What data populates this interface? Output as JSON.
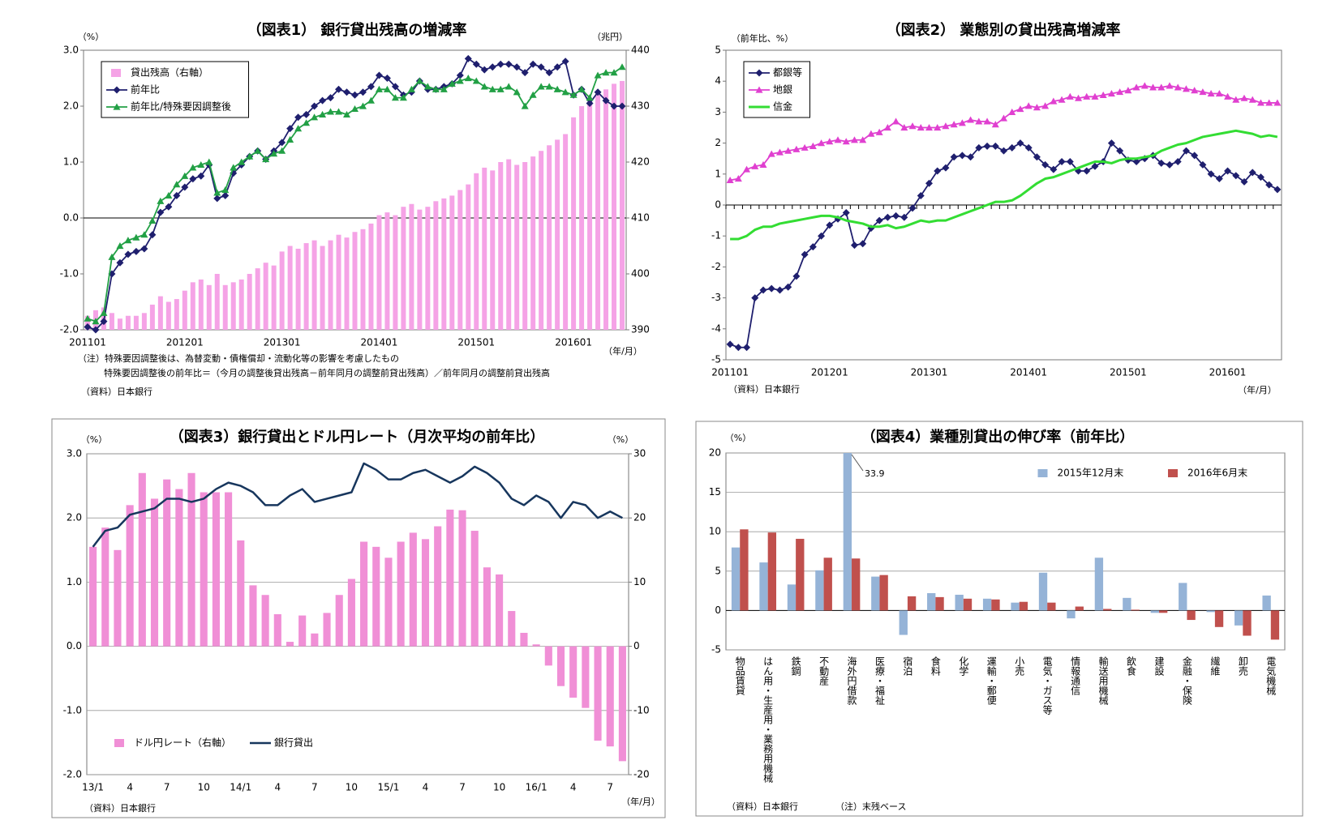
{
  "chart_data": [
    {
      "type": "combo",
      "title": "（図表1） 銀行貸出残高の増減率",
      "y_label": "（%）",
      "y2_label": "（兆円）",
      "x_unit": "（年/月）",
      "notes": [
        "（注）特殊要因調整後は、為替変動・債権償却・流動化等の影響を考慮したもの",
        "特殊要因調整後の前年比＝（今月の調整後貸出残高－前年同月の調整前貸出残高）／前年同月の調整前貸出残高"
      ],
      "source": "（資料）日本銀行",
      "categories": [
        "201101",
        null,
        null,
        null,
        null,
        null,
        null,
        null,
        null,
        null,
        null,
        null,
        "201201",
        null,
        null,
        null,
        null,
        null,
        null,
        null,
        null,
        null,
        null,
        null,
        "201301",
        null,
        null,
        null,
        null,
        null,
        null,
        null,
        null,
        null,
        null,
        null,
        "201401",
        null,
        null,
        null,
        null,
        null,
        null,
        null,
        null,
        null,
        null,
        null,
        "201501",
        null,
        null,
        null,
        null,
        null,
        null,
        null,
        null,
        null,
        null,
        null,
        "201601",
        null,
        null,
        null,
        null,
        null,
        null
      ],
      "series": [
        {
          "name": "貸出残高（右軸）",
          "type": "bar",
          "axis": "y2",
          "color": "#f5a3e6",
          "values": [
            392.5,
            393.5,
            394,
            393,
            392,
            392.5,
            392.5,
            393,
            394.5,
            396,
            395,
            395.5,
            397,
            398.5,
            399,
            398,
            400,
            398,
            398.5,
            399,
            400,
            401,
            402,
            401.5,
            404,
            405,
            404.5,
            405.5,
            406,
            405,
            406,
            407,
            406.5,
            407.5,
            408,
            409,
            410.5,
            411,
            410.5,
            412,
            412.5,
            411.5,
            412,
            413,
            413.5,
            414,
            415,
            416,
            418,
            419,
            418.5,
            420,
            420.5,
            419.5,
            420,
            421,
            422,
            423,
            424,
            425,
            428,
            430,
            430.5,
            432,
            433,
            434,
            434.5
          ]
        },
        {
          "name": "前年比",
          "type": "line",
          "marker": "diamond",
          "color": "#1f1f6e",
          "values": [
            -1.95,
            -2.0,
            -1.85,
            -1.0,
            -0.8,
            -0.65,
            -0.6,
            -0.55,
            -0.3,
            0.1,
            0.2,
            0.4,
            0.55,
            0.7,
            0.75,
            0.95,
            0.35,
            0.4,
            0.8,
            0.95,
            1.1,
            1.2,
            1.05,
            1.2,
            1.35,
            1.6,
            1.8,
            1.85,
            2.0,
            2.1,
            2.15,
            2.3,
            2.25,
            2.2,
            2.25,
            2.35,
            2.55,
            2.5,
            2.35,
            2.2,
            2.25,
            2.45,
            2.3,
            2.3,
            2.35,
            2.4,
            2.55,
            2.85,
            2.75,
            2.65,
            2.7,
            2.75,
            2.75,
            2.7,
            2.6,
            2.75,
            2.7,
            2.6,
            2.7,
            2.8,
            2.2,
            2.3,
            2.05,
            2.25,
            2.1,
            2.0,
            2.0
          ]
        },
        {
          "name": "前年比/特殊要因調整後",
          "type": "line",
          "marker": "triangle",
          "color": "#22a045",
          "values": [
            -1.8,
            -1.85,
            -1.7,
            -0.7,
            -0.5,
            -0.4,
            -0.35,
            -0.3,
            -0.05,
            0.3,
            0.4,
            0.6,
            0.75,
            0.9,
            0.95,
            1.0,
            0.45,
            0.5,
            0.9,
            1.0,
            1.1,
            1.2,
            1.05,
            1.15,
            1.2,
            1.4,
            1.6,
            1.7,
            1.8,
            1.85,
            1.9,
            1.9,
            1.85,
            1.95,
            2.0,
            2.1,
            2.3,
            2.3,
            2.15,
            2.15,
            2.3,
            2.45,
            2.35,
            2.3,
            2.3,
            2.4,
            2.45,
            2.5,
            2.45,
            2.35,
            2.3,
            2.3,
            2.35,
            2.25,
            2.0,
            2.2,
            2.35,
            2.35,
            2.3,
            2.25,
            2.2,
            2.3,
            2.15,
            2.55,
            2.6,
            2.6,
            2.7
          ]
        }
      ],
      "ylim": [
        -2,
        3
      ],
      "yticks": [
        {
          "value": -2,
          "label": "-2.0"
        },
        {
          "value": -1,
          "label": "-1.0"
        },
        {
          "value": 0,
          "label": "0.0"
        },
        {
          "value": 1,
          "label": "1.0"
        },
        {
          "value": 2,
          "label": "2.0"
        },
        {
          "value": 3,
          "label": "3.0"
        }
      ],
      "y2lim": [
        390,
        440
      ],
      "y2ticks": [
        390,
        400,
        410,
        420,
        430,
        440
      ],
      "grid": false,
      "zero_line": true,
      "legend": "upper left",
      "legend_layout": "column",
      "legend_frame": true
    },
    {
      "type": "line",
      "title": "（図表2） 業態別の貸出残高増減率",
      "y_label": "（前年比、%）",
      "x_unit": "（年/月）",
      "source": "（資料）日本銀行",
      "categories": [
        "201101",
        null,
        null,
        null,
        null,
        null,
        null,
        null,
        null,
        null,
        null,
        null,
        "201201",
        null,
        null,
        null,
        null,
        null,
        null,
        null,
        null,
        null,
        null,
        null,
        "201301",
        null,
        null,
        null,
        null,
        null,
        null,
        null,
        null,
        null,
        null,
        null,
        "201401",
        null,
        null,
        null,
        null,
        null,
        null,
        null,
        null,
        null,
        null,
        null,
        "201501",
        null,
        null,
        null,
        null,
        null,
        null,
        null,
        null,
        null,
        null,
        null,
        "201601",
        null,
        null,
        null,
        null,
        null,
        null
      ],
      "series": [
        {
          "name": "都銀等",
          "type": "line",
          "marker": "diamond",
          "color": "#1f1f6e",
          "values": [
            -4.5,
            -4.6,
            -4.6,
            -3.0,
            -2.75,
            -2.7,
            -2.75,
            -2.65,
            -2.3,
            -1.6,
            -1.35,
            -1.0,
            -0.65,
            -0.45,
            -0.25,
            -1.3,
            -1.25,
            -0.75,
            -0.5,
            -0.4,
            -0.35,
            -0.4,
            -0.1,
            0.3,
            0.7,
            1.1,
            1.2,
            1.55,
            1.6,
            1.55,
            1.85,
            1.9,
            1.9,
            1.75,
            1.85,
            2.0,
            1.85,
            1.55,
            1.3,
            1.15,
            1.4,
            1.4,
            1.1,
            1.1,
            1.25,
            1.4,
            2.0,
            1.75,
            1.45,
            1.4,
            1.5,
            1.6,
            1.35,
            1.3,
            1.4,
            1.75,
            1.6,
            1.3,
            1.0,
            0.85,
            1.1,
            0.95,
            0.75,
            1.05,
            0.9,
            0.65,
            0.5
          ]
        },
        {
          "name": "地銀",
          "type": "line",
          "marker": "triangle",
          "color": "#e040d0",
          "values": [
            0.8,
            0.85,
            1.15,
            1.25,
            1.3,
            1.65,
            1.7,
            1.75,
            1.8,
            1.85,
            1.9,
            2.0,
            2.05,
            2.1,
            2.05,
            2.1,
            2.1,
            2.3,
            2.35,
            2.5,
            2.7,
            2.5,
            2.55,
            2.5,
            2.5,
            2.5,
            2.55,
            2.6,
            2.65,
            2.75,
            2.7,
            2.7,
            2.6,
            2.8,
            3.0,
            3.1,
            3.2,
            3.15,
            3.2,
            3.35,
            3.4,
            3.5,
            3.45,
            3.5,
            3.5,
            3.55,
            3.6,
            3.65,
            3.7,
            3.8,
            3.85,
            3.8,
            3.8,
            3.85,
            3.8,
            3.75,
            3.7,
            3.65,
            3.6,
            3.6,
            3.5,
            3.4,
            3.45,
            3.4,
            3.3,
            3.3,
            3.3
          ]
        },
        {
          "name": "信金",
          "type": "line",
          "marker": "none",
          "width": 3,
          "color": "#33dd33",
          "values": [
            -1.1,
            -1.1,
            -1.0,
            -0.8,
            -0.7,
            -0.7,
            -0.6,
            -0.55,
            -0.5,
            -0.45,
            -0.4,
            -0.35,
            -0.35,
            -0.4,
            -0.5,
            -0.55,
            -0.6,
            -0.7,
            -0.7,
            -0.65,
            -0.75,
            -0.7,
            -0.6,
            -0.5,
            -0.55,
            -0.5,
            -0.5,
            -0.4,
            -0.3,
            -0.2,
            -0.1,
            0.0,
            0.1,
            0.1,
            0.15,
            0.3,
            0.5,
            0.7,
            0.85,
            0.9,
            1.0,
            1.1,
            1.2,
            1.3,
            1.4,
            1.4,
            1.35,
            1.45,
            1.5,
            1.5,
            1.55,
            1.6,
            1.75,
            1.85,
            1.95,
            2.0,
            2.1,
            2.2,
            2.25,
            2.3,
            2.35,
            2.4,
            2.35,
            2.3,
            2.2,
            2.25,
            2.2
          ]
        }
      ],
      "ylim": [
        -5,
        5
      ],
      "yticks": [
        -5,
        -4,
        -3,
        -2,
        -1,
        0,
        1,
        2,
        3,
        4,
        5
      ],
      "grid": false,
      "zero_line": true,
      "legend": "upper left",
      "legend_layout": "column",
      "legend_frame": true
    },
    {
      "type": "combo",
      "title": "（図表3）銀行貸出とドル円レート（月次平均の前年比）",
      "y_label": "（%）",
      "y2_label": "（%）",
      "x_unit": "（年/月）",
      "source": "（資料）日本銀行",
      "categories": [
        "13/1",
        null,
        null,
        "4",
        null,
        null,
        "7",
        null,
        null,
        "10",
        null,
        null,
        "14/1",
        null,
        null,
        "4",
        null,
        null,
        "7",
        null,
        null,
        "10",
        null,
        null,
        "15/1",
        null,
        null,
        "4",
        null,
        null,
        "7",
        null,
        null,
        "10",
        null,
        null,
        "16/1",
        null,
        null,
        "4",
        null,
        null,
        "7",
        null
      ],
      "series": [
        {
          "name": "ドル円レート（右軸）",
          "type": "bar",
          "axis": "y2",
          "color": "#f08fd6",
          "values": [
            15.5,
            18.5,
            15,
            22,
            27,
            23,
            26,
            24.5,
            27,
            24,
            24,
            24,
            16.5,
            9.5,
            8,
            5,
            0.7,
            4.8,
            2,
            5.2,
            8,
            10.5,
            16.3,
            15.5,
            13.8,
            16.3,
            17.7,
            16.7,
            18.7,
            21.3,
            21.2,
            18,
            12.3,
            11.2,
            5.5,
            2.1,
            0.3,
            -3,
            -6.2,
            -8,
            -9.6,
            -14.7,
            -15.6,
            -17.9
          ]
        },
        {
          "name": "銀行貸出",
          "type": "line",
          "marker": "none",
          "width": 2.5,
          "color": "#17365d",
          "values": [
            1.55,
            1.8,
            1.85,
            2.05,
            2.1,
            2.15,
            2.3,
            2.3,
            2.25,
            2.3,
            2.45,
            2.55,
            2.5,
            2.4,
            2.2,
            2.2,
            2.35,
            2.45,
            2.25,
            2.3,
            2.35,
            2.4,
            2.85,
            2.75,
            2.6,
            2.6,
            2.7,
            2.75,
            2.65,
            2.55,
            2.65,
            2.8,
            2.7,
            2.55,
            2.3,
            2.2,
            2.35,
            2.25,
            2.0,
            2.25,
            2.2,
            2.0,
            2.1,
            2.0
          ]
        }
      ],
      "ylim": [
        -2,
        3
      ],
      "yticks": [
        {
          "value": -2,
          "label": "-2.0"
        },
        {
          "value": -1,
          "label": "-1.0"
        },
        {
          "value": 0,
          "label": "0.0"
        },
        {
          "value": 1,
          "label": "1.0"
        },
        {
          "value": 2,
          "label": "2.0"
        },
        {
          "value": 3,
          "label": "3.0"
        }
      ],
      "y2lim": [
        -20,
        30
      ],
      "y2ticks": [
        -20,
        -10,
        0,
        10,
        20,
        30
      ],
      "grid": true,
      "zero_line": false,
      "legend": "lower left",
      "legend_layout": "row",
      "legend_frame": false
    },
    {
      "type": "bar",
      "title": "（図表4）業種別貸出の伸び率（前年比）",
      "y_label": "（%）",
      "source": "（資料）日本銀行",
      "notes": [
        "（注）末残ベース"
      ],
      "categories": [
        "物品賃貸",
        "はん用・生産用・業務用機械",
        "鉄鋼",
        "不動産",
        "海外円借款",
        "医療・福祉",
        "宿泊",
        "食料",
        "化学",
        "運輸・郵便",
        "小売",
        "電気・ガス等",
        "情報通信",
        "輸送用機械",
        "飲食",
        "建設",
        "金融・保険",
        "繊維",
        "卸売",
        "電気機械"
      ],
      "series": [
        {
          "name": "2015年12月末",
          "type": "bar",
          "color": "#95b3d7",
          "values": [
            8.0,
            6.1,
            3.3,
            5.1,
            33.9,
            4.3,
            -3.1,
            2.2,
            2.0,
            1.5,
            1.0,
            4.8,
            -1.0,
            6.7,
            1.6,
            -0.3,
            3.5,
            -0.2,
            -1.9,
            1.9
          ],
          "value_labels": [
            null,
            null,
            null,
            null,
            "33.9",
            null,
            null,
            null,
            null,
            null,
            null,
            null,
            null,
            null,
            null,
            null,
            null,
            null,
            null,
            null
          ]
        },
        {
          "name": "2016年6月末",
          "type": "bar",
          "color": "#c0504d",
          "values": [
            10.3,
            9.9,
            9.1,
            6.7,
            6.6,
            4.5,
            1.8,
            1.7,
            1.5,
            1.4,
            1.1,
            1.0,
            0.5,
            0.2,
            0.1,
            -0.3,
            -1.2,
            -2.1,
            -3.2,
            -3.7
          ]
        }
      ],
      "ylim": [
        -5,
        20
      ],
      "yticks": [
        -5,
        0,
        5,
        10,
        15,
        20
      ],
      "grid": true,
      "zero_line": true,
      "legend": "upper right",
      "legend_layout": "row",
      "legend_frame": false,
      "vertical_labels": true
    }
  ]
}
